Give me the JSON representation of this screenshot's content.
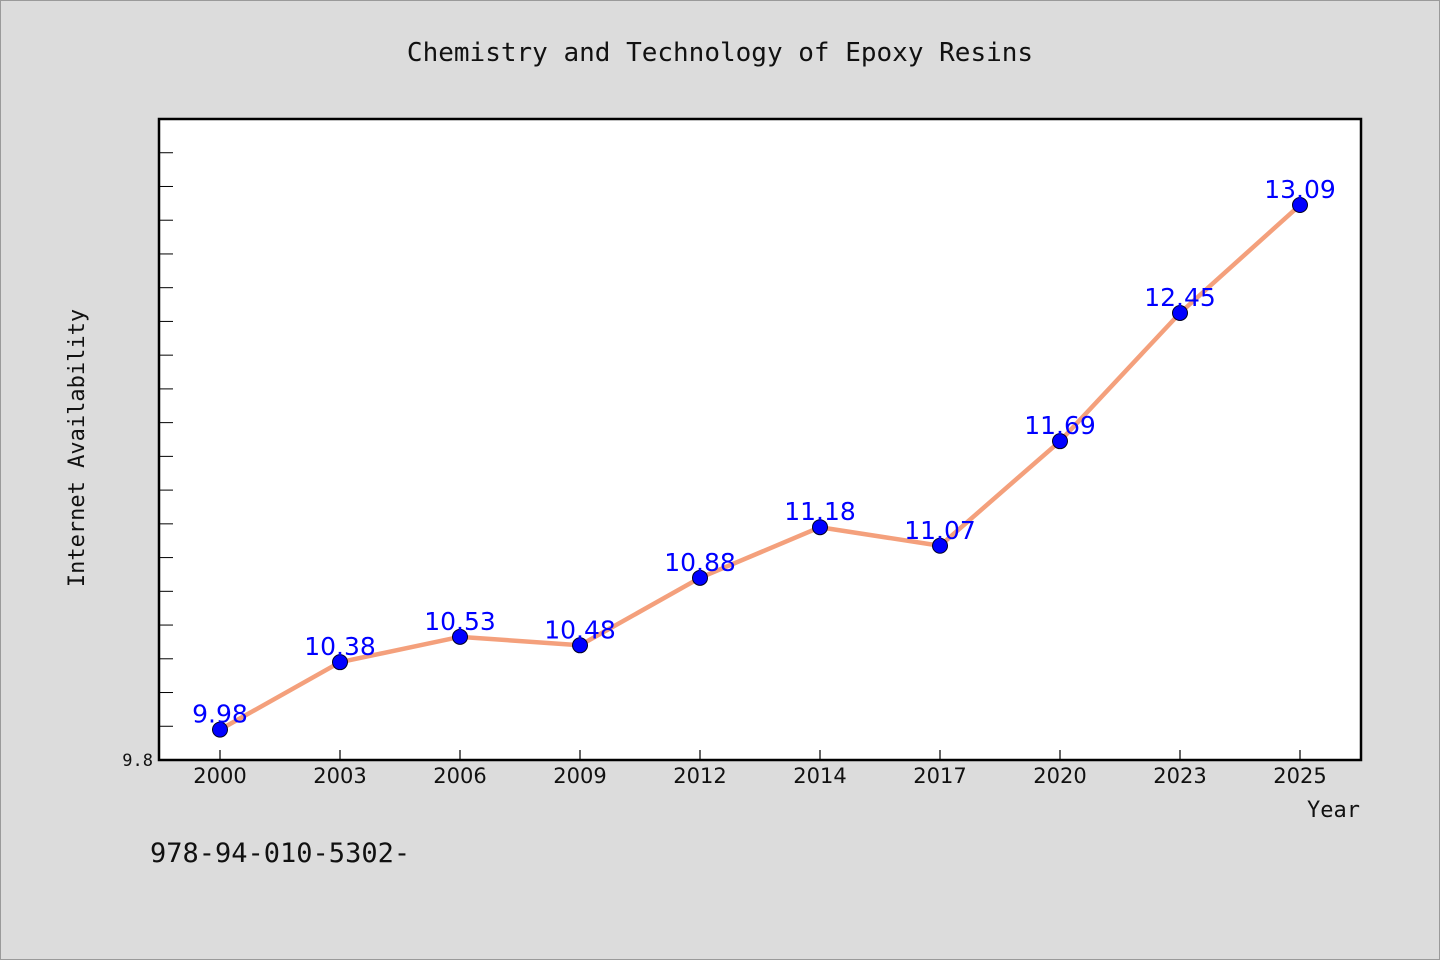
{
  "chart_data": {
    "type": "line",
    "title": "Chemistry and Technology of Epoxy Resins",
    "xlabel": "Year",
    "ylabel": "Internet Availability",
    "categories": [
      "2000",
      "2003",
      "2006",
      "2009",
      "2012",
      "2014",
      "2017",
      "2020",
      "2023",
      "2025"
    ],
    "series": [
      {
        "values": [
          9.98,
          10.38,
          10.53,
          10.48,
          10.88,
          11.18,
          11.07,
          11.69,
          12.45,
          13.09
        ],
        "line_color": "#f4a07c",
        "marker_color": "#0000ff"
      }
    ],
    "ylim": [
      9.8,
      13.6
    ],
    "yticks_labeled": [
      "9.8"
    ],
    "grid": false,
    "legend": "none",
    "data_label_color": "#0000ff",
    "plot_background": "#ffffff",
    "figure_background": "#dcdcdc"
  },
  "footer": {
    "text": "978-94-010-5302-"
  }
}
